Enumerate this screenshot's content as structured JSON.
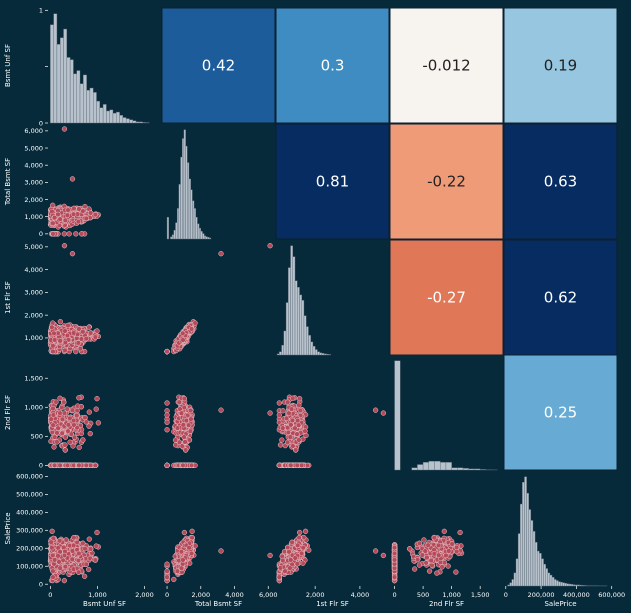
{
  "chart_data": {
    "type": "pairplot",
    "variables": [
      "Bsmt Unf SF",
      "Total Bsmt SF",
      "1st Flr SF",
      "2nd Flr SF",
      "SalePrice"
    ],
    "ranges": [
      [
        -50,
        2350
      ],
      [
        -300,
        6400
      ],
      [
        250,
        5300
      ],
      [
        -80,
        1900
      ],
      [
        -10000,
        630000
      ]
    ],
    "y_ticks": {
      "0": [
        0,
        0.5,
        1
      ],
      "1": [
        0,
        1000,
        2000,
        3000,
        4000,
        5000,
        6000
      ],
      "2": [
        1000,
        2000,
        3000,
        4000,
        5000
      ],
      "3": [
        0,
        500,
        1000,
        1500
      ],
      "4": [
        0,
        100000,
        200000,
        300000,
        400000,
        500000,
        600000
      ]
    },
    "y_tick_labels": {
      "0": [
        "0",
        "",
        "1"
      ],
      "1": [
        "0",
        "1,000",
        "2,000",
        "3,000",
        "4,000",
        "5,000",
        "6,000"
      ],
      "2": [
        "1,000",
        "2,000",
        "3,000",
        "4,000",
        "5,000"
      ],
      "3": [
        "0",
        "500",
        "1,000",
        "1,500"
      ],
      "4": [
        "0",
        "100,000",
        "200,000",
        "300,000",
        "400,000",
        "500,000",
        "600,000"
      ]
    },
    "x_ticks": {
      "0": [
        0,
        1000,
        2000
      ],
      "1": [
        0,
        2000,
        4000,
        6000
      ],
      "2": [
        2000,
        4000
      ],
      "3": [
        0,
        500,
        1000,
        1500
      ],
      "4": [
        0,
        200000,
        400000,
        600000
      ]
    },
    "x_tick_labels": {
      "0": [
        "0",
        "1,000",
        "2,000"
      ],
      "1": [
        "0",
        "2,000",
        "4,000",
        "6,000"
      ],
      "2": [
        "2,000",
        "4,000"
      ],
      "3": [
        "0",
        "500",
        "1,000",
        "1,500"
      ],
      "4": [
        "0",
        "200,000",
        "400,000",
        "600,000"
      ]
    },
    "correlations": [
      {
        "row": 0,
        "col": 1,
        "value": "0.42",
        "color": "#1d5c9b",
        "text_color": "#ffffff"
      },
      {
        "row": 0,
        "col": 2,
        "value": "0.3",
        "color": "#3f8cc2",
        "text_color": "#ffffff"
      },
      {
        "row": 0,
        "col": 3,
        "value": "-0.012",
        "color": "#f7f3ef",
        "text_color": "#222222"
      },
      {
        "row": 0,
        "col": 4,
        "value": "0.19",
        "color": "#96c6e0",
        "text_color": "#222222"
      },
      {
        "row": 1,
        "col": 2,
        "value": "0.81",
        "color": "#072c61",
        "text_color": "#ffffff"
      },
      {
        "row": 1,
        "col": 3,
        "value": "-0.22",
        "color": "#f09b78",
        "text_color": "#222222"
      },
      {
        "row": 1,
        "col": 4,
        "value": "0.63",
        "color": "#072c61",
        "text_color": "#ffffff"
      },
      {
        "row": 2,
        "col": 3,
        "value": "-0.27",
        "color": "#e07858",
        "text_color": "#ffffff"
      },
      {
        "row": 2,
        "col": 4,
        "value": "0.62",
        "color": "#072c61",
        "text_color": "#ffffff"
      },
      {
        "row": 3,
        "col": 4,
        "value": "0.25",
        "color": "#67abd4",
        "text_color": "#ffffff"
      }
    ],
    "histograms": [
      {
        "var": 0,
        "bin_start": 0,
        "bin_width": 70,
        "heights": [
          0.9,
          1.0,
          0.72,
          0.78,
          0.86,
          0.6,
          0.58,
          0.45,
          0.48,
          0.36,
          0.44,
          0.3,
          0.32,
          0.28,
          0.2,
          0.14,
          0.17,
          0.11,
          0.12,
          0.09,
          0.1,
          0.07,
          0.05,
          0.04,
          0.03,
          0.02,
          0.01,
          0.01,
          0.005,
          0.004
        ]
      },
      {
        "var": 1,
        "bin_start": 0,
        "bin_width": 100,
        "heights": [
          0.2,
          0.0,
          0.02,
          0.04,
          0.08,
          0.15,
          0.28,
          0.5,
          0.75,
          0.92,
          1.0,
          0.85,
          0.7,
          0.55,
          0.45,
          0.35,
          0.28,
          0.2,
          0.14,
          0.1,
          0.07,
          0.05,
          0.03,
          0.02,
          0.015,
          0.01
        ]
      },
      {
        "var": 2,
        "bin_start": 300,
        "bin_width": 100,
        "heights": [
          0.01,
          0.03,
          0.09,
          0.22,
          0.48,
          0.8,
          1.0,
          0.9,
          0.68,
          0.62,
          0.55,
          0.5,
          0.36,
          0.26,
          0.18,
          0.12,
          0.08,
          0.05,
          0.03,
          0.02,
          0.015,
          0.01,
          0.008,
          0.005
        ]
      },
      {
        "var": 3,
        "bin_start": 0,
        "bin_width": 100,
        "heights": [
          1.0,
          0.0,
          0.0,
          0.02,
          0.05,
          0.07,
          0.08,
          0.08,
          0.07,
          0.07,
          0.02,
          0.02,
          0.015,
          0.01,
          0.01,
          0.005,
          0.002,
          0.001
        ]
      },
      {
        "var": 4,
        "bin_start": 10000,
        "bin_width": 12000,
        "heights": [
          0.01,
          0.03,
          0.06,
          0.12,
          0.25,
          0.48,
          0.75,
          0.95,
          1.0,
          0.85,
          0.7,
          0.6,
          0.5,
          0.4,
          0.32,
          0.3,
          0.25,
          0.2,
          0.16,
          0.12,
          0.1,
          0.08,
          0.06,
          0.05,
          0.04,
          0.035,
          0.03,
          0.025,
          0.02,
          0.018,
          0.015,
          0.012,
          0.01,
          0.01,
          0.008,
          0.006,
          0.005,
          0.004,
          0.003,
          0.003,
          0.002,
          0.002,
          0.002,
          0.001,
          0.001,
          0.001,
          0.001
        ]
      }
    ],
    "scatter_colors": {
      "fill": "#b44a5a",
      "stroke": "#e8c3c8"
    },
    "hist_colors": {
      "fill": "#b7c2cc",
      "stroke": "#5d6b78"
    },
    "panel_bg": "#062a3a"
  }
}
